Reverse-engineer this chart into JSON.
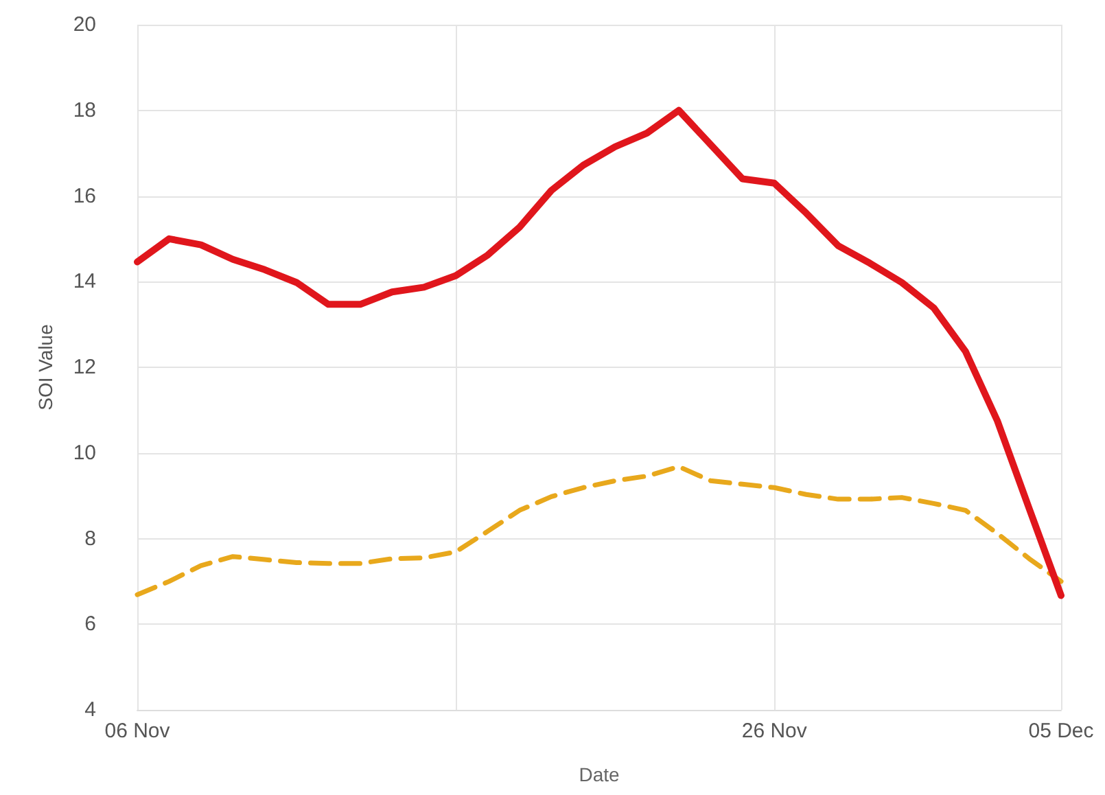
{
  "chart_data": {
    "type": "line",
    "xlabel": "Date",
    "ylabel": "SOI Value",
    "x": [
      "--11-06",
      "--11-07",
      "--11-08",
      "--11-09",
      "--11-10",
      "--11-11",
      "--11-12",
      "--11-13",
      "--11-14",
      "--11-15",
      "--11-16",
      "--11-17",
      "--11-18",
      "--11-19",
      "--11-20",
      "--11-21",
      "--11-22",
      "--11-23",
      "--11-24",
      "--11-25",
      "--11-26",
      "--11-27",
      "--11-28",
      "--11-29",
      "--11-30",
      "--12-01",
      "--12-02",
      "--12-03",
      "--12-04",
      "--12-05"
    ],
    "series": [
      {
        "color": "#e0161c",
        "line_style": "solid",
        "values": [
          14.46,
          15.0,
          14.86,
          14.52,
          14.28,
          13.98,
          13.47,
          13.47,
          13.76,
          13.87,
          14.14,
          14.62,
          15.27,
          16.13,
          16.72,
          17.15,
          17.47,
          18.0,
          17.2,
          16.4,
          16.3,
          15.6,
          14.84,
          14.43,
          13.98,
          13.39,
          12.37,
          10.75,
          8.7,
          6.67
        ]
      },
      {
        "color": "#e8a81c",
        "line_style": "dashed",
        "values": [
          6.69,
          7.0,
          7.37,
          7.58,
          7.51,
          7.44,
          7.42,
          7.42,
          7.53,
          7.55,
          7.69,
          8.17,
          8.66,
          8.98,
          9.19,
          9.35,
          9.46,
          9.68,
          9.35,
          9.27,
          9.19,
          9.03,
          8.92,
          8.92,
          8.96,
          8.82,
          8.66,
          8.12,
          7.53,
          7.0
        ]
      }
    ],
    "xlim": [
      "--11-06",
      "--12-05"
    ],
    "xticks": [
      {
        "value": "--11-06",
        "label": "06 Nov"
      },
      {
        "value": "--11-16",
        "label": null
      },
      {
        "value": "--11-26",
        "label": "26 Nov"
      },
      {
        "value": "--12-05",
        "label": "05 Dec"
      }
    ],
    "ylim": [
      4,
      20
    ],
    "yticks": [
      4,
      6,
      8,
      10,
      12,
      14,
      16,
      18,
      20
    ],
    "grid": true,
    "marker": "none"
  }
}
